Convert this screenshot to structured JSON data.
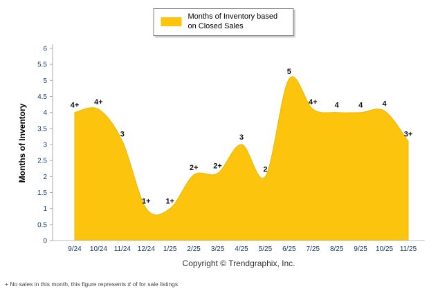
{
  "chart_data": {
    "type": "area",
    "title": "",
    "legend": "Months of Inventory based on Closed Sales",
    "legend_position": "top",
    "xlabel": "",
    "ylabel": "Months of Inventory",
    "categories": [
      "9/24",
      "10/24",
      "11/24",
      "12/24",
      "1/25",
      "2/25",
      "3/25",
      "4/25",
      "5/25",
      "6/25",
      "7/25",
      "8/25",
      "9/25",
      "10/25",
      "11/25"
    ],
    "values": [
      4.0,
      4.1,
      3.1,
      1.0,
      1.0,
      2.05,
      2.1,
      3.0,
      2.0,
      5.05,
      4.1,
      4.0,
      4.0,
      4.05,
      3.1
    ],
    "point_labels": [
      "4+",
      "4+",
      "3",
      "1+",
      "1+",
      "2+",
      "2+",
      "3",
      "2",
      "5",
      "4+",
      "4",
      "4",
      "4",
      "3+"
    ],
    "ylim": [
      0,
      6
    ],
    "ytick_step": 0.5,
    "grid": "off",
    "area_color": "#FCC40D",
    "area_edge_color": "#EDB402",
    "axis_label_color": "#17375E",
    "point_label_color": "#111111"
  },
  "footer": {
    "copyright": "Copyright © Trendgraphix, Inc.",
    "note": "+  No sales in this month, this figure represents # of for sale listings"
  }
}
